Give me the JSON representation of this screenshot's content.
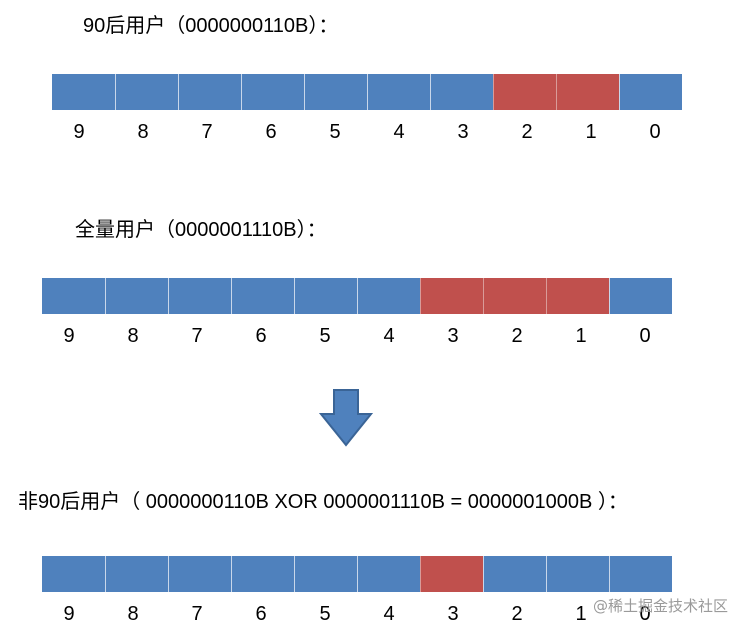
{
  "colors": {
    "bit_off": "#4f81bd",
    "bit_on": "#c0504d",
    "arrow": "#4f81bd"
  },
  "sections": [
    {
      "title": "90后用户（0000000110B）：",
      "bits": [
        0,
        0,
        0,
        0,
        0,
        0,
        0,
        1,
        1,
        0
      ],
      "indices": [
        "9",
        "8",
        "7",
        "6",
        "5",
        "4",
        "3",
        "2",
        "1",
        "0"
      ]
    },
    {
      "title": "全量用户（0000001110B）：",
      "bits": [
        0,
        0,
        0,
        0,
        0,
        0,
        1,
        1,
        1,
        0
      ],
      "indices": [
        "9",
        "8",
        "7",
        "6",
        "5",
        "4",
        "3",
        "2",
        "1",
        "0"
      ]
    },
    {
      "title": "非90后用户（ 0000000110B  XOR  0000001110B = 0000001000B ）：",
      "bits": [
        0,
        0,
        0,
        0,
        0,
        0,
        1,
        0,
        0,
        0
      ],
      "indices": [
        "9",
        "8",
        "7",
        "6",
        "5",
        "4",
        "3",
        "2",
        "1",
        "0"
      ]
    }
  ],
  "arrow_icon": "down-arrow-icon",
  "watermark": "@稀土掘金技术社区"
}
